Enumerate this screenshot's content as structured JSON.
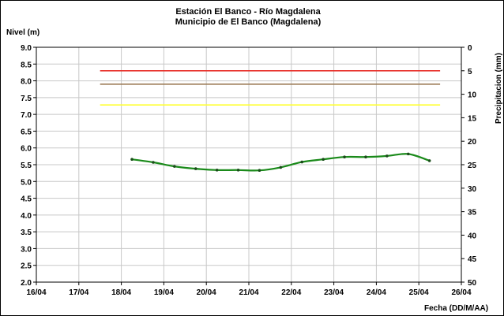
{
  "chart_data": {
    "type": "line",
    "title": "Estación El Banco - Río Magdalena",
    "subtitle": "Municipio de El Banco (Magdalena)",
    "ylabel": "Nivel (m)",
    "y2label": "Precipitacion (mm)",
    "xlabel": "Fecha (DD/M/AA)",
    "ylim": [
      2.0,
      9.0
    ],
    "y2lim": [
      0,
      50
    ],
    "y2_reversed": true,
    "xlim": [
      "16/04",
      "26/04"
    ],
    "x_ticks": [
      "16/04",
      "17/04",
      "18/04",
      "19/04",
      "20/04",
      "21/04",
      "22/04",
      "23/04",
      "24/04",
      "25/04",
      "26/04"
    ],
    "y_ticks": [
      "2.0",
      "2.5",
      "3.0",
      "3.5",
      "4.0",
      "4.5",
      "5.0",
      "5.5",
      "6.0",
      "6.5",
      "7.0",
      "7.5",
      "8.0",
      "8.5",
      "9.0"
    ],
    "y2_ticks": [
      "0",
      "5",
      "10",
      "15",
      "20",
      "25",
      "30",
      "35",
      "40",
      "45",
      "50"
    ],
    "grid": true,
    "thresholds": [
      {
        "value": 8.3,
        "color": "#e8312a"
      },
      {
        "value": 7.9,
        "color": "#9c7b56"
      },
      {
        "value": 7.28,
        "color": "#ffff33"
      }
    ],
    "threshold_x_range": [
      17.5,
      25.5
    ],
    "series": [
      {
        "color": "#1a8a1a",
        "x": [
          18.25,
          18.75,
          19.25,
          19.75,
          20.25,
          20.75,
          21.25,
          21.75,
          22.25,
          22.75,
          23.25,
          23.75,
          24.25,
          24.75,
          25.25
        ],
        "values": [
          5.66,
          5.57,
          5.45,
          5.38,
          5.34,
          5.34,
          5.33,
          5.42,
          5.58,
          5.66,
          5.73,
          5.73,
          5.76,
          5.82,
          5.62
        ]
      }
    ]
  }
}
